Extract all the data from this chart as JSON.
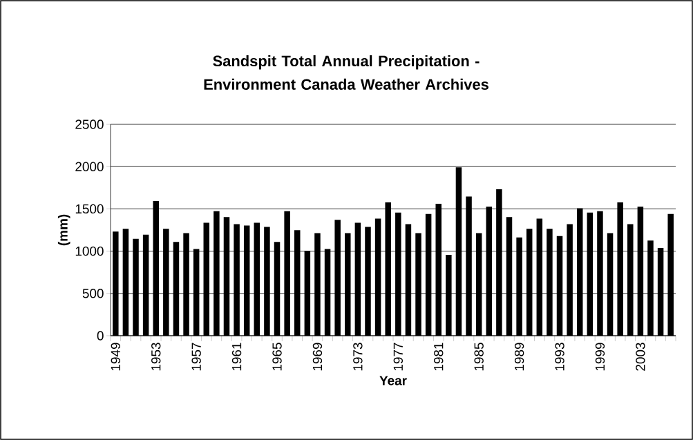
{
  "chart_data": {
    "type": "bar",
    "title": "Sandspit Total Annual Precipitation - Environment Canada Weather Archives",
    "xlabel": "Year",
    "ylabel": "(mm)",
    "categories": [
      "1949",
      null,
      null,
      null,
      "1953",
      null,
      null,
      null,
      "1957",
      null,
      null,
      null,
      "1961",
      null,
      null,
      null,
      "1965",
      null,
      null,
      null,
      "1969",
      null,
      null,
      null,
      "1973",
      null,
      null,
      null,
      "1977",
      null,
      null,
      null,
      "1981",
      null,
      null,
      null,
      "1985",
      null,
      null,
      null,
      "1989",
      null,
      null,
      null,
      "1993",
      null,
      null,
      null,
      "1999",
      null,
      null,
      null,
      "2003",
      null,
      null,
      null
    ],
    "values": [
      1231,
      1264,
      1146,
      1195,
      1593,
      1264,
      1110,
      1214,
      1025,
      1335,
      1473,
      1404,
      1319,
      1302,
      1335,
      1286,
      1110,
      1473,
      1247,
      1005,
      1214,
      1025,
      1371,
      1214,
      1335,
      1286,
      1385,
      1577,
      1456,
      1319,
      1214,
      1440,
      1560,
      956,
      1992,
      1646,
      1214,
      1525,
      1731,
      1404,
      1162,
      1264,
      1385,
      1264,
      1179,
      1319,
      1508,
      1456,
      1473,
      1214,
      1577,
      1319,
      1525,
      1126,
      1038,
      1440
    ],
    "color": "#000000",
    "ylim": [
      0,
      2500
    ],
    "yticks": [
      0,
      500,
      1000,
      1500,
      2000,
      2500
    ],
    "grid": "y"
  }
}
